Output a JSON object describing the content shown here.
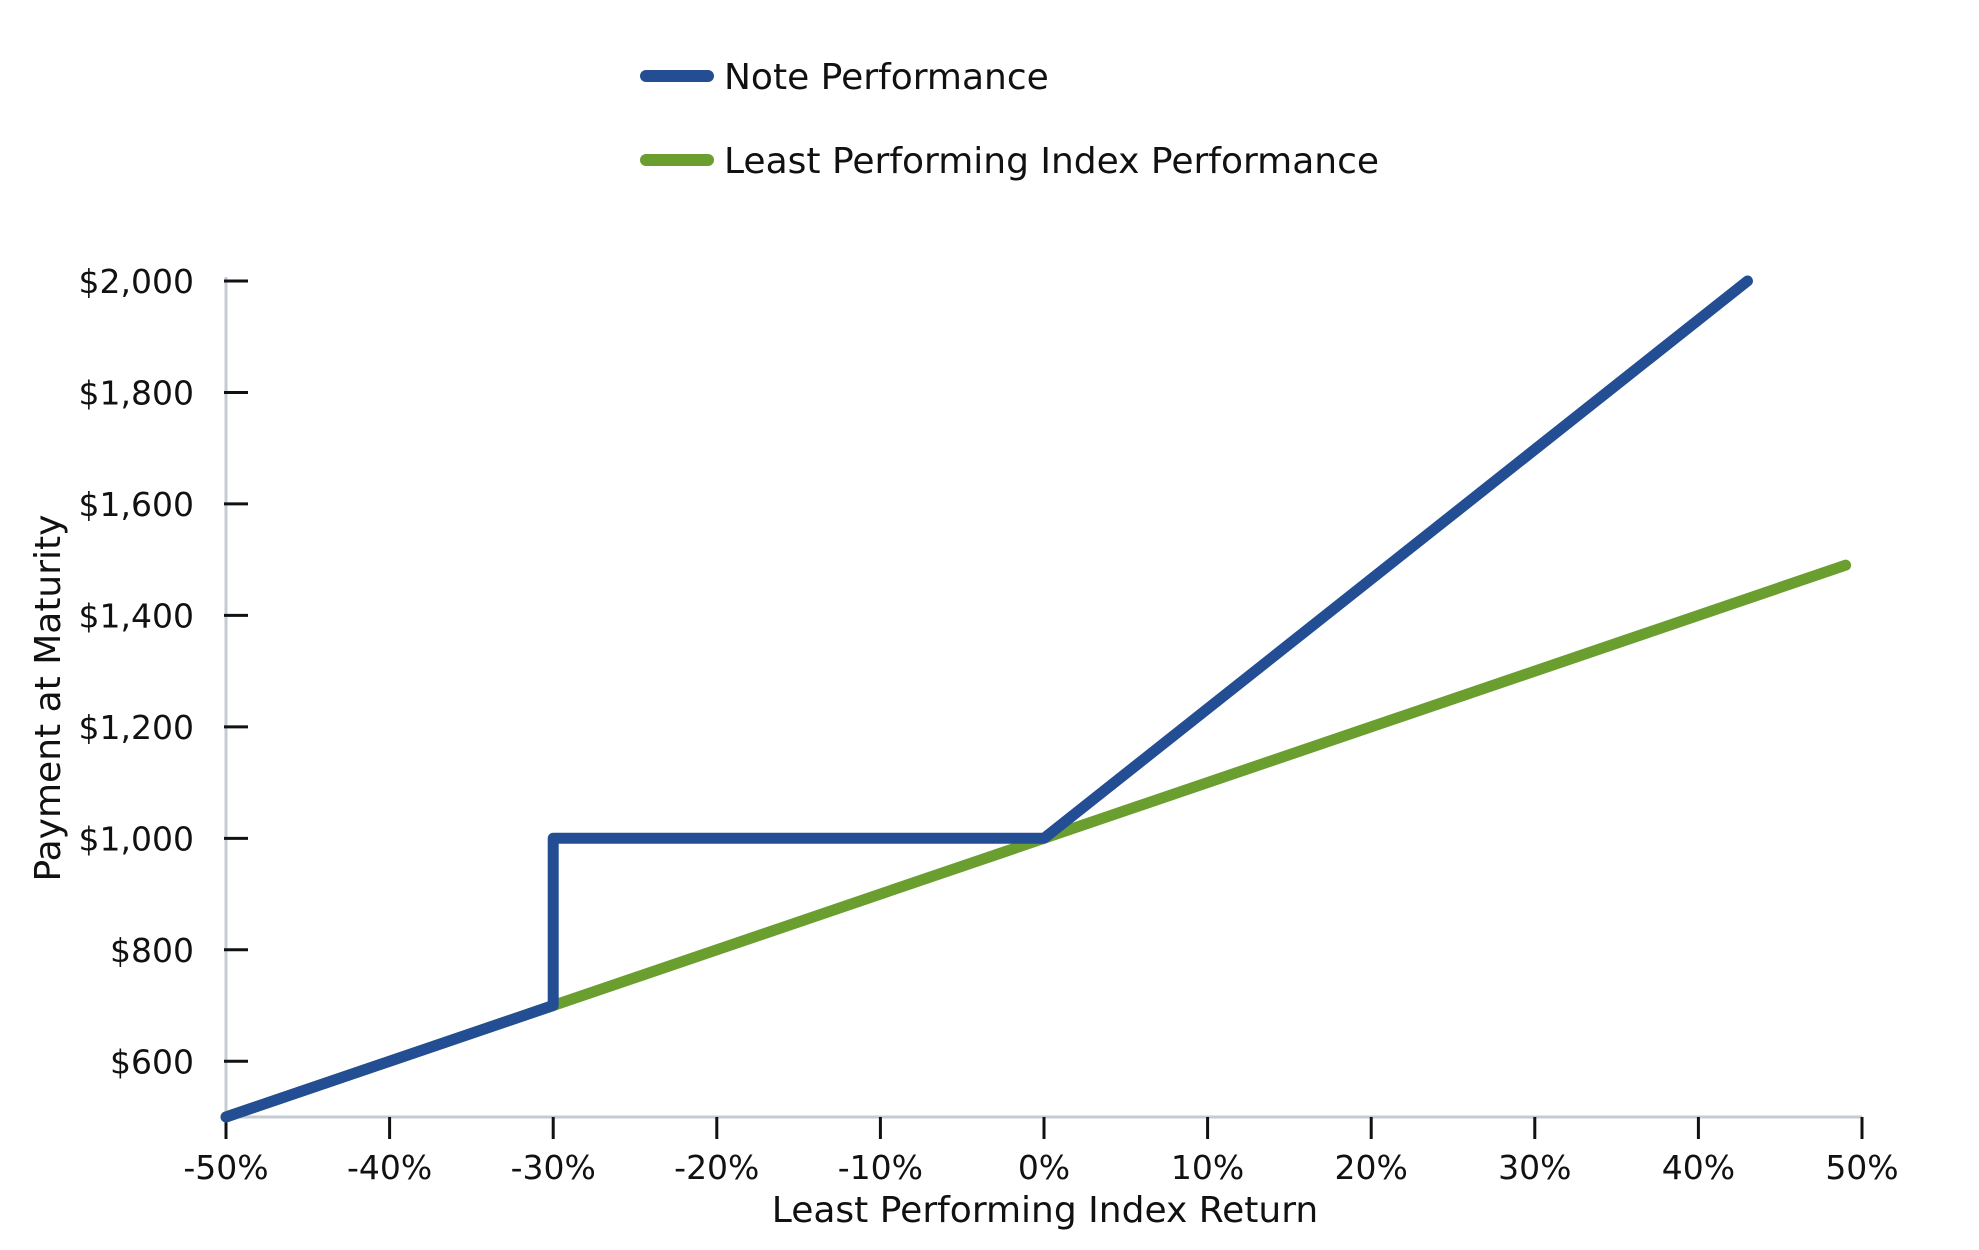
{
  "chart_data": {
    "type": "line",
    "title": "",
    "xlabel": "Least Performing Index Return",
    "ylabel": "Payment at Maturity",
    "xlim": [
      -50,
      50
    ],
    "ylim": [
      500,
      2000
    ],
    "x_ticks": [
      -50,
      -40,
      -30,
      -20,
      -10,
      0,
      10,
      20,
      30,
      40,
      50
    ],
    "x_tick_labels": [
      "-50%",
      "-40%",
      "-30%",
      "-20%",
      "-10%",
      "0%",
      "10%",
      "20%",
      "30%",
      "40%",
      "50%"
    ],
    "y_ticks": [
      600,
      800,
      1000,
      1200,
      1400,
      1600,
      1800,
      2000
    ],
    "y_tick_labels": [
      "$600",
      "$800",
      "$1,000",
      "$1,200",
      "$1,400",
      "$1,600",
      "$1,800",
      "$2,000"
    ],
    "grid": false,
    "legend_position": "top-center",
    "series": [
      {
        "name": "Note Performance",
        "color": "#234e94",
        "points": [
          [
            -50,
            500
          ],
          [
            -30,
            700
          ],
          [
            -30,
            1000
          ],
          [
            0,
            1000
          ],
          [
            43,
            2000
          ]
        ]
      },
      {
        "name": "Least Performing Index Performance",
        "color": "#6a9e2f",
        "points": [
          [
            -50,
            500
          ],
          [
            49,
            1490
          ]
        ]
      }
    ]
  }
}
